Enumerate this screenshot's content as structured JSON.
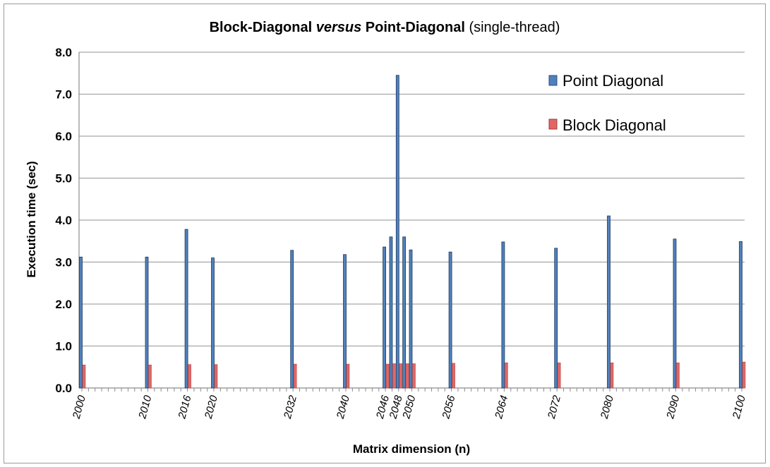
{
  "chart_data": {
    "type": "bar",
    "title": {
      "part1": "Block-Diagonal ",
      "part2": "versus",
      "part3": " Point-Diagonal",
      "part4": " (single-thread)"
    },
    "xlabel": "Matrix dimension (n)",
    "ylabel": "Execution time (sec)",
    "ylim": [
      0,
      8
    ],
    "xlim": [
      2000,
      2100
    ],
    "y_ticks": [
      "0.0",
      "1.0",
      "2.0",
      "3.0",
      "4.0",
      "5.0",
      "6.0",
      "7.0",
      "8.0"
    ],
    "x": [
      2000,
      2010,
      2016,
      2020,
      2032,
      2040,
      2046,
      2047,
      2048,
      2049,
      2050,
      2056,
      2064,
      2072,
      2080,
      2090,
      2100
    ],
    "x_tick_labels": [
      "2000",
      "2010",
      "2016",
      "2020",
      "2032",
      "2040",
      "2046",
      "2048",
      "2050",
      "2056",
      "2064",
      "2072",
      "2080",
      "2090",
      "2100"
    ],
    "series": [
      {
        "name": "Point Diagonal",
        "color": "#4f81bd",
        "values": [
          3.12,
          3.12,
          3.78,
          3.1,
          3.28,
          3.18,
          3.36,
          3.6,
          7.45,
          3.6,
          3.29,
          3.24,
          3.48,
          3.33,
          4.1,
          3.55,
          3.49
        ]
      },
      {
        "name": "Block Diagonal",
        "color": "#e06666",
        "values": [
          0.55,
          0.55,
          0.56,
          0.56,
          0.57,
          0.57,
          0.57,
          0.58,
          0.58,
          0.58,
          0.58,
          0.59,
          0.6,
          0.6,
          0.6,
          0.6,
          0.62
        ]
      }
    ],
    "legend": "top-right",
    "grid": true
  }
}
